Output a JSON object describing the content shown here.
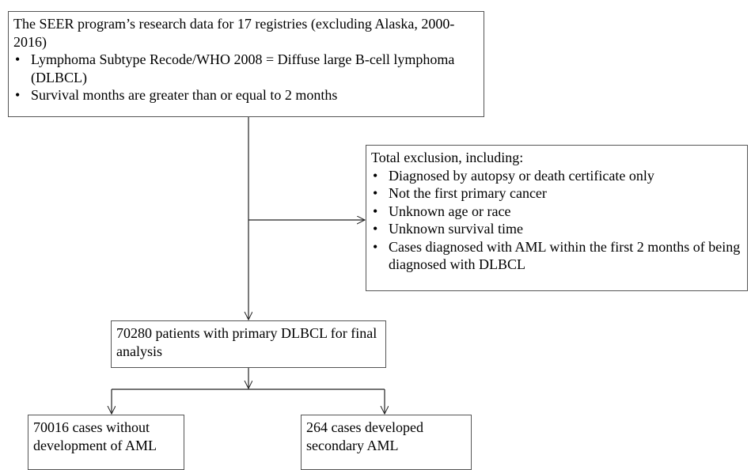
{
  "nodes": [
    {
      "title": "The SEER program’s research data for 17 registries (excluding Alaska, 2000-2016)",
      "items": [
        "Lymphoma Subtype Recode/WHO 2008 = Diffuse large B-cell lymphoma (DLBCL)",
        "Survival months are greater than or equal to 2 months"
      ]
    },
    {
      "title": "Total exclusion, including:",
      "items": [
        "Diagnosed by autopsy or death certificate only",
        "Not the first primary cancer",
        "Unknown age or race",
        "Unknown survival time",
        "Cases diagnosed with AML within the first 2 months of being diagnosed with DLBCL"
      ]
    },
    {
      "title": "70280 patients with primary DLBCL for final analysis"
    },
    {
      "title": "70016 cases without development of AML"
    },
    {
      "title": "264 cases developed secondary AML"
    }
  ]
}
